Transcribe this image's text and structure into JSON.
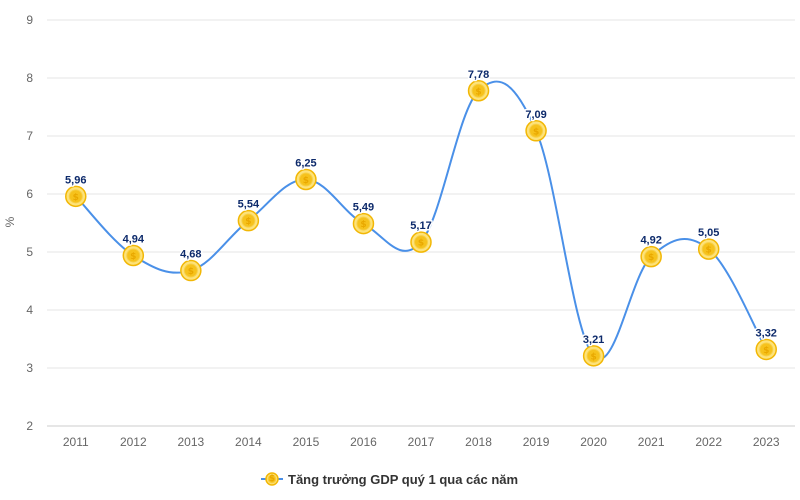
{
  "chart_data": {
    "type": "line",
    "title": "",
    "xlabel": "",
    "ylabel": "%",
    "ylim": [
      2,
      9
    ],
    "yticks": [
      "2",
      "3",
      "4",
      "5",
      "6",
      "7",
      "8",
      "9"
    ],
    "categories": [
      "2011",
      "2012",
      "2013",
      "2014",
      "2015",
      "2016",
      "2017",
      "2018",
      "2019",
      "2020",
      "2021",
      "2022",
      "2023"
    ],
    "series": [
      {
        "name": "Tăng trưởng GDP quý 1 qua các năm",
        "values": [
          5.96,
          4.94,
          4.68,
          5.54,
          6.25,
          5.49,
          5.17,
          7.78,
          7.09,
          3.21,
          4.92,
          5.05,
          3.32
        ],
        "labels": [
          "5,96",
          "4,94",
          "4,68",
          "5,54",
          "6,25",
          "5,49",
          "5,17",
          "7,78",
          "7,09",
          "3,21",
          "4,92",
          "5,05",
          "3,32"
        ]
      }
    ],
    "grid": true,
    "legend_position": "bottom-center",
    "line_color": "#4a90e8",
    "marker_color": "#f6c21c",
    "marker_icon": "coin-icon",
    "marker_glyph": "$",
    "label_color": "#0d2a6b",
    "grid_color": "#e6e6e6"
  }
}
